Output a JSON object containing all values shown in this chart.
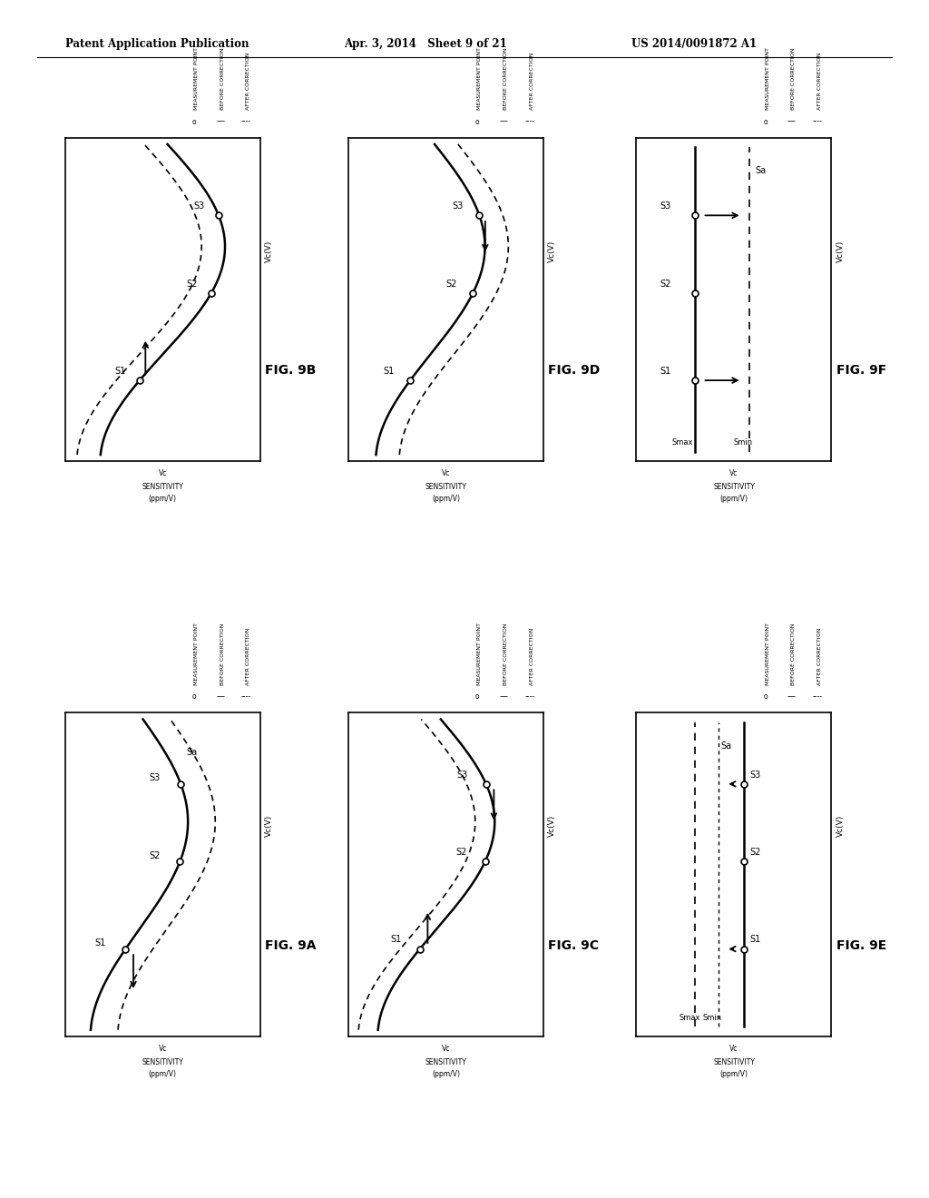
{
  "title_left": "Patent Application Publication",
  "title_mid": "Apr. 3, 2014   Sheet 9 of 21",
  "title_right": "US 2014/0091872 A1",
  "bg_color": "#ffffff",
  "panels": {
    "top_row": {
      "fig9B": {
        "label": "FIG. 9B",
        "col": 0,
        "row": 0
      },
      "fig9D": {
        "label": "FIG. 9D",
        "col": 1,
        "row": 0
      },
      "fig9F": {
        "label": "FIG. 9F",
        "col": 2,
        "row": 0
      }
    },
    "bot_row": {
      "fig9A": {
        "label": "FIG. 9A",
        "col": 0,
        "row": 1
      },
      "fig9C": {
        "label": "FIG. 9C",
        "col": 1,
        "row": 1
      },
      "fig9E": {
        "label": "FIG. 9E",
        "col": 2,
        "row": 1
      }
    }
  }
}
